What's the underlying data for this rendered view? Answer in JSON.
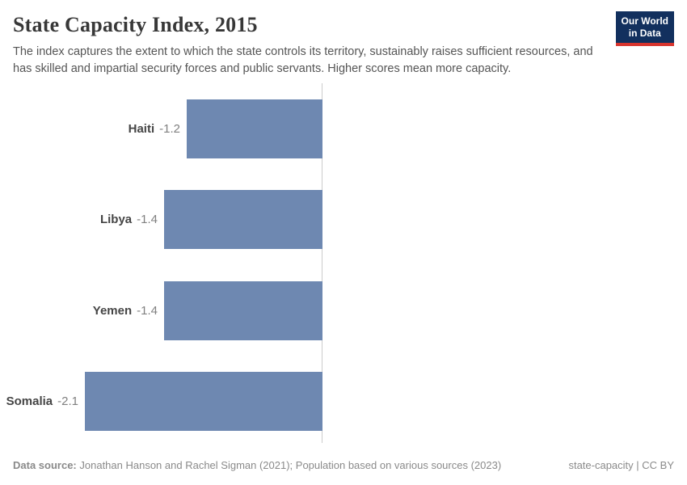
{
  "header": {
    "title": "State Capacity Index, 2015",
    "subtitle": "The index captures the extent to which the state controls its territory, sustainably raises sufficient resources, and has skilled and impartial security forces and public servants. Higher scores mean more capacity.",
    "logo": {
      "line1": "Our World",
      "line2": "in Data"
    }
  },
  "chart_data": {
    "type": "bar",
    "orientation": "horizontal",
    "title": "State Capacity Index, 2015",
    "categories": [
      "Haiti",
      "Libya",
      "Yemen",
      "Somalia"
    ],
    "values": [
      -1.2,
      -1.4,
      -1.4,
      -2.1
    ],
    "value_labels": [
      "-1.2",
      "-1.4",
      "-1.4",
      "-2.1"
    ],
    "xlabel": "",
    "ylabel": "",
    "xlim": [
      -2.2,
      0
    ],
    "grid": false,
    "legend": "none",
    "axis_note": "single vertical zero-line on the right edge of bars, no ticks",
    "bar_color": "#6e88b1"
  },
  "footer": {
    "datasource_label": "Data source:",
    "datasource_text": "Jonathan Hanson and Rachel Sigman (2021); Population based on various sources (2023)",
    "license": "state-capacity | CC BY"
  },
  "colors": {
    "bar": "#6e88b1",
    "axis_line": "#cccccc",
    "logo_navy": "#12305e",
    "logo_red": "#d8352e"
  }
}
